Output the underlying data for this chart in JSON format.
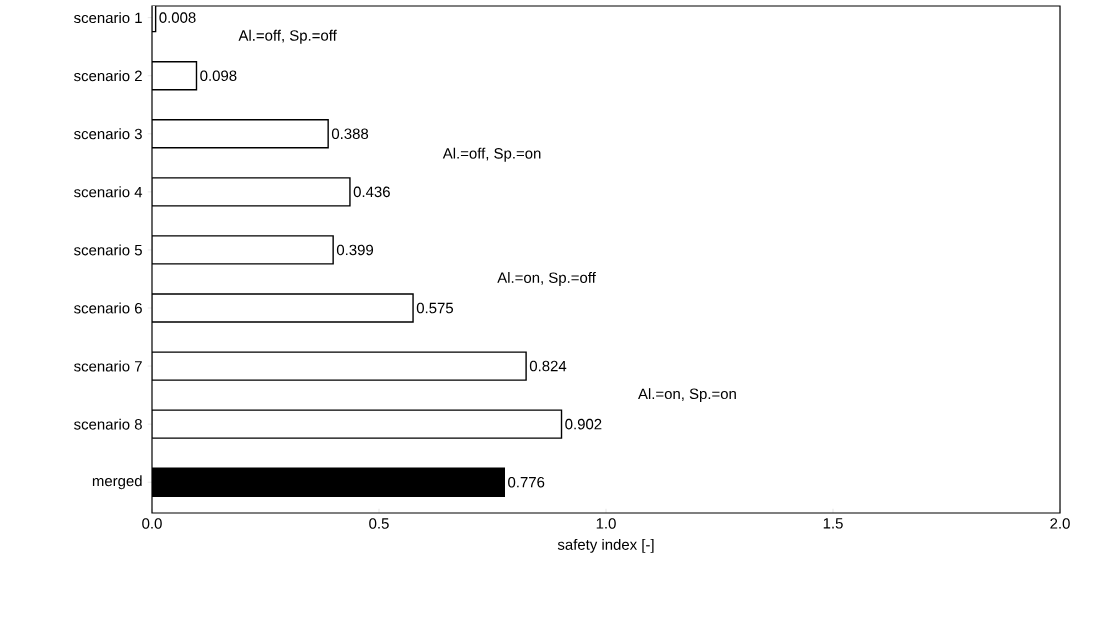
{
  "chart_data": {
    "type": "bar",
    "orientation": "horizontal",
    "categories": [
      "scenario 1",
      "scenario 2",
      "scenario 3",
      "scenario 4",
      "scenario 5",
      "scenario 6",
      "scenario 7",
      "scenario 8",
      "merged"
    ],
    "values": [
      0.008,
      0.098,
      0.388,
      0.436,
      0.399,
      0.575,
      0.824,
      0.902,
      0.776
    ],
    "colors": [
      "#ffffff",
      "#ffffff",
      "#ffffff",
      "#ffffff",
      "#ffffff",
      "#ffffff",
      "#ffffff",
      "#ffffff",
      "#000000"
    ],
    "data_labels": true,
    "xlabel": "safety index [-]",
    "xlim": [
      0,
      2
    ],
    "xticks": [
      {
        "value": 0,
        "label": "0.0"
      },
      {
        "value": 0.5,
        "label": "0.5"
      },
      {
        "value": 1,
        "label": "1.0"
      },
      {
        "value": 1.5,
        "label": "1.5"
      },
      {
        "value": 2,
        "label": "2.0"
      }
    ],
    "annotations": [
      "Al.=off, Sp.=off",
      "Al.=off, Sp.=on",
      "Al.=on, Sp.=off",
      "Al.=on, Sp.=on"
    ],
    "grid": false
  }
}
